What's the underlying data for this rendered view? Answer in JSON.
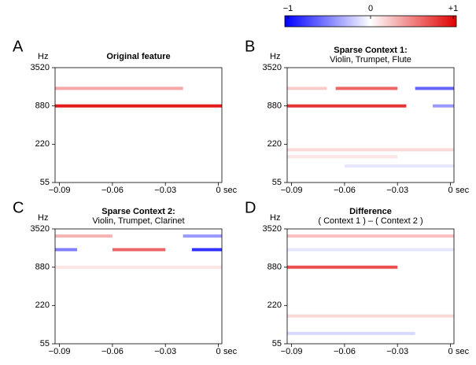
{
  "colorbar": {
    "ticks": [
      {
        "value": -1,
        "label": "−1"
      },
      0,
      {
        "value": 1,
        "label": "+1"
      }
    ],
    "lim": [
      -1,
      1
    ],
    "colors": [
      "#0000ff",
      "#ffffff",
      "#e00000"
    ]
  },
  "chart_data": [
    {
      "type": "heatmap",
      "panel_label": "A",
      "title": "Original feature",
      "y_unit": "Hz",
      "x_unit": "sec",
      "log_y": true,
      "xlim": [
        -0.0925,
        0.002
      ],
      "xticks": [
        {
          "value": -0.09,
          "label": "−0.09"
        },
        {
          "value": -0.06,
          "label": "−0.06"
        },
        {
          "value": -0.03,
          "label": "−0.03"
        },
        0
      ],
      "ylim": [
        55,
        3520
      ],
      "yticks": [
        55,
        220,
        880,
        3520
      ],
      "stripes": [
        {
          "freq": 880,
          "t": [
            -0.0925,
            0.002
          ],
          "value": 0.9
        },
        {
          "freq": 1660,
          "t": [
            -0.0925,
            -0.02
          ],
          "value": 0.35
        }
      ]
    },
    {
      "type": "heatmap",
      "panel_label": "B",
      "title": "Sparse Context 1:",
      "subtitle": "Violin, Trumpet, Flute",
      "y_unit": "Hz",
      "x_unit": "sec",
      "log_y": true,
      "xlim": [
        -0.0925,
        0.002
      ],
      "xticks": [
        {
          "value": -0.09,
          "label": "−0.09"
        },
        {
          "value": -0.06,
          "label": "−0.06"
        },
        {
          "value": -0.03,
          "label": "−0.03"
        },
        0
      ],
      "ylim": [
        55,
        3520
      ],
      "yticks": [
        55,
        220,
        880,
        3520
      ],
      "stripes": [
        {
          "freq": 880,
          "t": [
            -0.0925,
            -0.025
          ],
          "value": 0.8
        },
        {
          "freq": 880,
          "t": [
            -0.01,
            0.002
          ],
          "value": -0.4
        },
        {
          "freq": 1660,
          "t": [
            -0.0925,
            -0.07
          ],
          "value": 0.2
        },
        {
          "freq": 1660,
          "t": [
            -0.065,
            -0.03
          ],
          "value": 0.6
        },
        {
          "freq": 1660,
          "t": [
            -0.02,
            0.002
          ],
          "value": -0.6
        },
        {
          "freq": 180,
          "t": [
            -0.0925,
            0.002
          ],
          "value": 0.15
        },
        {
          "freq": 140,
          "t": [
            -0.0925,
            -0.03
          ],
          "value": 0.1
        },
        {
          "freq": 100,
          "t": [
            -0.06,
            0.002
          ],
          "value": -0.1
        }
      ]
    },
    {
      "type": "heatmap",
      "panel_label": "C",
      "title": "Sparse Context 2:",
      "subtitle": "Violin, Trumpet, Clarinet",
      "y_unit": "Hz",
      "x_unit": "sec",
      "log_y": true,
      "xlim": [
        -0.0925,
        0.002
      ],
      "xticks": [
        {
          "value": -0.09,
          "label": "−0.09"
        },
        {
          "value": -0.06,
          "label": "−0.06"
        },
        {
          "value": -0.03,
          "label": "−0.03"
        },
        0
      ],
      "ylim": [
        55,
        3520
      ],
      "yticks": [
        55,
        220,
        880,
        3520
      ],
      "stripes": [
        {
          "freq": 1660,
          "t": [
            -0.0925,
            -0.08
          ],
          "value": -0.5
        },
        {
          "freq": 1660,
          "t": [
            -0.06,
            -0.03
          ],
          "value": 0.6
        },
        {
          "freq": 1660,
          "t": [
            -0.015,
            0.002
          ],
          "value": -0.8
        },
        {
          "freq": 2720,
          "t": [
            -0.0925,
            -0.06
          ],
          "value": 0.3
        },
        {
          "freq": 2720,
          "t": [
            -0.02,
            0.002
          ],
          "value": -0.4
        },
        {
          "freq": 880,
          "t": [
            -0.0925,
            0.002
          ],
          "value": 0.1
        }
      ]
    },
    {
      "type": "heatmap",
      "panel_label": "D",
      "title": "Difference",
      "subtitle": "( Context 1 ) – ( Context 2 )",
      "y_unit": "Hz",
      "x_unit": "sec",
      "log_y": true,
      "xlim": [
        -0.0925,
        0.002
      ],
      "xticks": [
        {
          "value": -0.09,
          "label": "−0.09"
        },
        {
          "value": -0.06,
          "label": "−0.06"
        },
        {
          "value": -0.03,
          "label": "−0.03"
        },
        0
      ],
      "ylim": [
        55,
        3520
      ],
      "yticks": [
        55,
        220,
        880,
        3520
      ],
      "stripes": [
        {
          "freq": 880,
          "t": [
            -0.0925,
            -0.03
          ],
          "value": 0.7
        },
        {
          "freq": 1660,
          "t": [
            -0.0925,
            0.002
          ],
          "value": -0.1
        },
        {
          "freq": 2720,
          "t": [
            -0.0925,
            0.002
          ],
          "value": 0.25
        },
        {
          "freq": 150,
          "t": [
            -0.0925,
            0.002
          ],
          "value": 0.15
        },
        {
          "freq": 80,
          "t": [
            -0.0925,
            -0.02
          ],
          "value": -0.15
        }
      ]
    }
  ]
}
